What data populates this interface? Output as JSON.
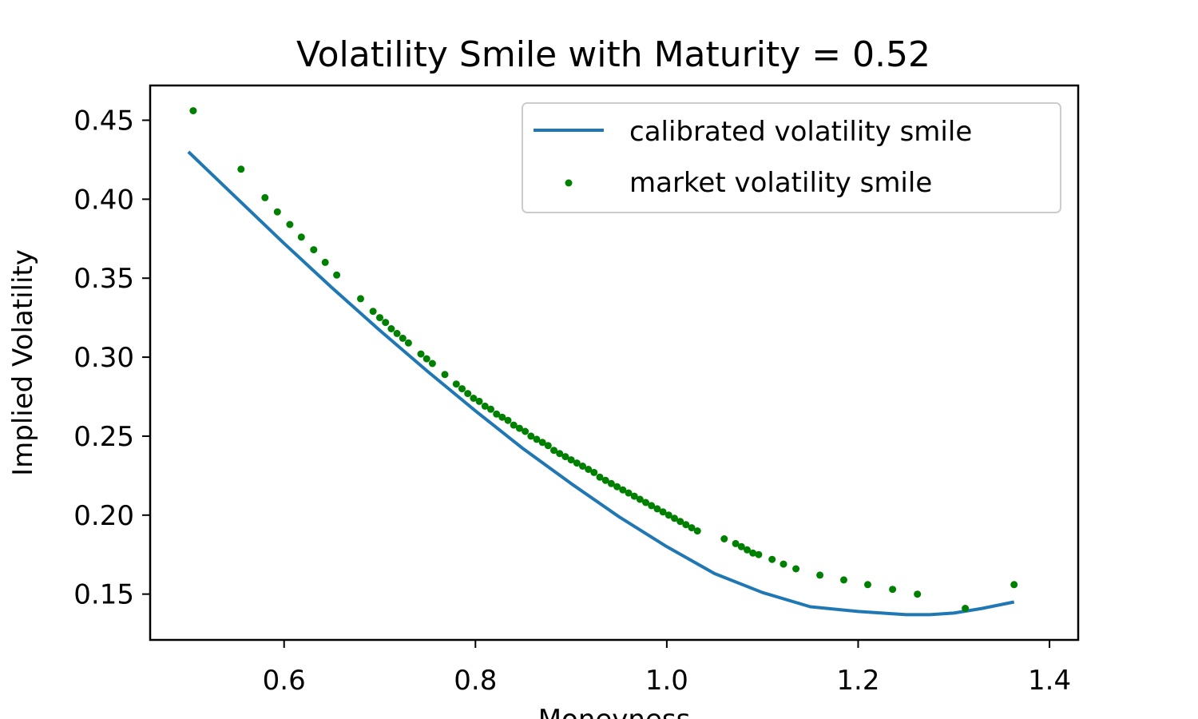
{
  "chart_data": {
    "type": "line",
    "title": "Volatility Smile with Maturity = 0.52",
    "xlabel": "Moneyness",
    "ylabel": "Implied Volatility",
    "xlim": [
      0.46,
      1.43
    ],
    "ylim": [
      0.121,
      0.472
    ],
    "xticks": [
      0.6,
      0.8,
      1.0,
      1.2,
      1.4
    ],
    "xtick_labels": [
      "0.6",
      "0.8",
      "1.0",
      "1.2",
      "1.4"
    ],
    "yticks": [
      0.15,
      0.2,
      0.25,
      0.3,
      0.35,
      0.4,
      0.45
    ],
    "ytick_labels": [
      "0.15",
      "0.20",
      "0.25",
      "0.30",
      "0.35",
      "0.40",
      "0.45"
    ],
    "legend_position": "upper-right",
    "series": [
      {
        "name": "calibrated volatility smile",
        "kind": "line",
        "color": "#1f77b4",
        "x": [
          0.5,
          0.55,
          0.6,
          0.65,
          0.7,
          0.75,
          0.8,
          0.85,
          0.9,
          0.95,
          1.0,
          1.05,
          1.1,
          1.15,
          1.2,
          1.25,
          1.275,
          1.3,
          1.33,
          1.363
        ],
        "y": [
          0.43,
          0.401,
          0.372,
          0.344,
          0.317,
          0.291,
          0.266,
          0.242,
          0.22,
          0.199,
          0.18,
          0.163,
          0.151,
          0.142,
          0.139,
          0.137,
          0.137,
          0.138,
          0.141,
          0.145
        ]
      },
      {
        "name": "market volatility smile",
        "kind": "scatter",
        "color": "#008000",
        "x": [
          0.505,
          0.555,
          0.58,
          0.593,
          0.606,
          0.618,
          0.631,
          0.643,
          0.655,
          0.68,
          0.693,
          0.7,
          0.706,
          0.712,
          0.718,
          0.724,
          0.73,
          0.743,
          0.749,
          0.755,
          0.768,
          0.78,
          0.786,
          0.792,
          0.798,
          0.804,
          0.81,
          0.816,
          0.822,
          0.828,
          0.834,
          0.84,
          0.846,
          0.852,
          0.858,
          0.864,
          0.87,
          0.876,
          0.882,
          0.888,
          0.894,
          0.9,
          0.906,
          0.912,
          0.918,
          0.924,
          0.93,
          0.936,
          0.942,
          0.948,
          0.954,
          0.96,
          0.966,
          0.972,
          0.978,
          0.984,
          0.99,
          0.996,
          1.002,
          1.008,
          1.014,
          1.02,
          1.026,
          1.032,
          1.06,
          1.072,
          1.078,
          1.084,
          1.09,
          1.096,
          1.11,
          1.122,
          1.135,
          1.16,
          1.185,
          1.21,
          1.236,
          1.262,
          1.312,
          1.363
        ],
        "y": [
          0.456,
          0.419,
          0.401,
          0.392,
          0.384,
          0.376,
          0.368,
          0.36,
          0.352,
          0.337,
          0.329,
          0.325,
          0.322,
          0.318,
          0.315,
          0.312,
          0.309,
          0.302,
          0.299,
          0.296,
          0.289,
          0.283,
          0.28,
          0.277,
          0.274,
          0.272,
          0.269,
          0.267,
          0.264,
          0.262,
          0.26,
          0.257,
          0.255,
          0.253,
          0.25,
          0.248,
          0.246,
          0.244,
          0.241,
          0.239,
          0.237,
          0.235,
          0.233,
          0.231,
          0.229,
          0.227,
          0.224,
          0.222,
          0.22,
          0.218,
          0.216,
          0.214,
          0.212,
          0.21,
          0.208,
          0.206,
          0.204,
          0.202,
          0.2,
          0.198,
          0.196,
          0.194,
          0.192,
          0.19,
          0.185,
          0.182,
          0.18,
          0.178,
          0.176,
          0.175,
          0.172,
          0.169,
          0.166,
          0.162,
          0.159,
          0.156,
          0.153,
          0.15,
          0.141,
          0.156
        ]
      }
    ]
  }
}
